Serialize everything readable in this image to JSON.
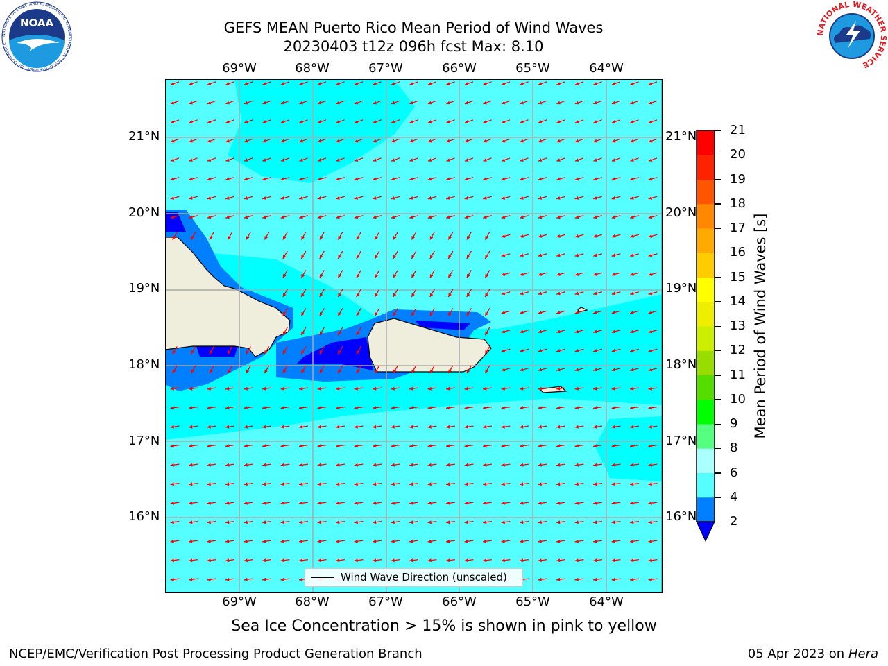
{
  "header": {
    "title_line1": "GEFS MEAN Puerto Rico Mean Period of Wind Waves",
    "title_line2": "20230403 t12z 096h fcst   Max: 8.10"
  },
  "logos": {
    "noaa_text": "NOAA",
    "noaa_ring": "NATIONAL OCEANIC AND ATMOSPHERIC ADMINISTRATION · U.S. DEPARTMENT OF COMMERCE",
    "nws_ring": "NATIONAL WEATHER SERVICE"
  },
  "map": {
    "lon_labels": [
      "69°W",
      "68°W",
      "67°W",
      "66°W",
      "65°W",
      "64°W"
    ],
    "lat_labels": [
      "21°N",
      "20°N",
      "19°N",
      "18°N",
      "17°N",
      "16°N"
    ],
    "ocean_color": "#00ffff",
    "light_color": "#55ffff",
    "blue_color": "#007fff",
    "deep_blue_color": "#0000ff",
    "land_color": "#efeedd",
    "arrow_color": "#ff0000",
    "legend_label": "Wind Wave Direction (unscaled)"
  },
  "colorbar": {
    "label": "Mean Period of Wind Waves [s]",
    "ticks": [
      "2",
      "4",
      "6",
      "8",
      "9",
      "10",
      "11",
      "12",
      "13",
      "14",
      "15",
      "16",
      "17",
      "18",
      "19",
      "20",
      "21"
    ],
    "colors": [
      "#007fff",
      "#00ffff",
      "#55ffff",
      "#aaffff",
      "#55ff7f",
      "#00ff00",
      "#55dd00",
      "#99dd00",
      "#ccee00",
      "#eeee00",
      "#ffff00",
      "#ffcc00",
      "#ffaa00",
      "#ff8800",
      "#ff5500",
      "#ff2200",
      "#ff0000"
    ],
    "under_color": "#0000ff"
  },
  "footer": {
    "note": "Sea Ice Concentration > 15% is shown in pink to yellow",
    "left": "NCEP/EMC/Verification Post Processing Product Generation Branch",
    "date": "05 Apr 2023 on ",
    "host": "Hera"
  }
}
